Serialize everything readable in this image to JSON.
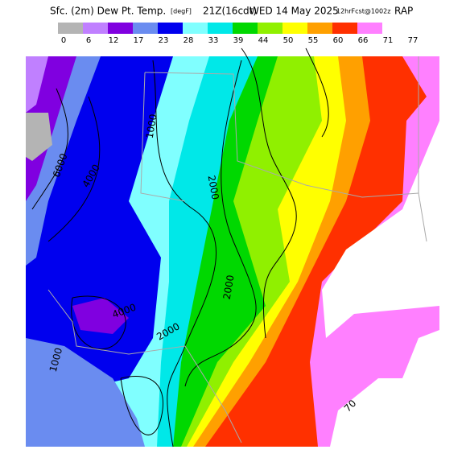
{
  "header": {
    "title": "Sfc. (2m) Dew Pt. Temp.",
    "units": "[degF]",
    "valid": "21Z(16cdt)",
    "date": "WED 14 May 2025",
    "forecast": "12hrFcst@1002z",
    "model": "RAP"
  },
  "legend": {
    "labels": [
      "0",
      "6",
      "12",
      "17",
      "23",
      "28",
      "33",
      "39",
      "44",
      "50",
      "55",
      "60",
      "66",
      "71",
      "77"
    ],
    "colors": [
      "#b4b4b4",
      "#c080ff",
      "#8000e0",
      "#6a8cf0",
      "#0000ee",
      "#80ffff",
      "#00e8e8",
      "#00d800",
      "#90f000",
      "#ffff00",
      "#ffa000",
      "#ff3000",
      "#ff80ff"
    ]
  },
  "contour_labels": [
    "1000",
    "2000",
    "6000",
    "4000",
    "2000",
    "4000",
    "2000",
    "1000",
    "70"
  ]
}
